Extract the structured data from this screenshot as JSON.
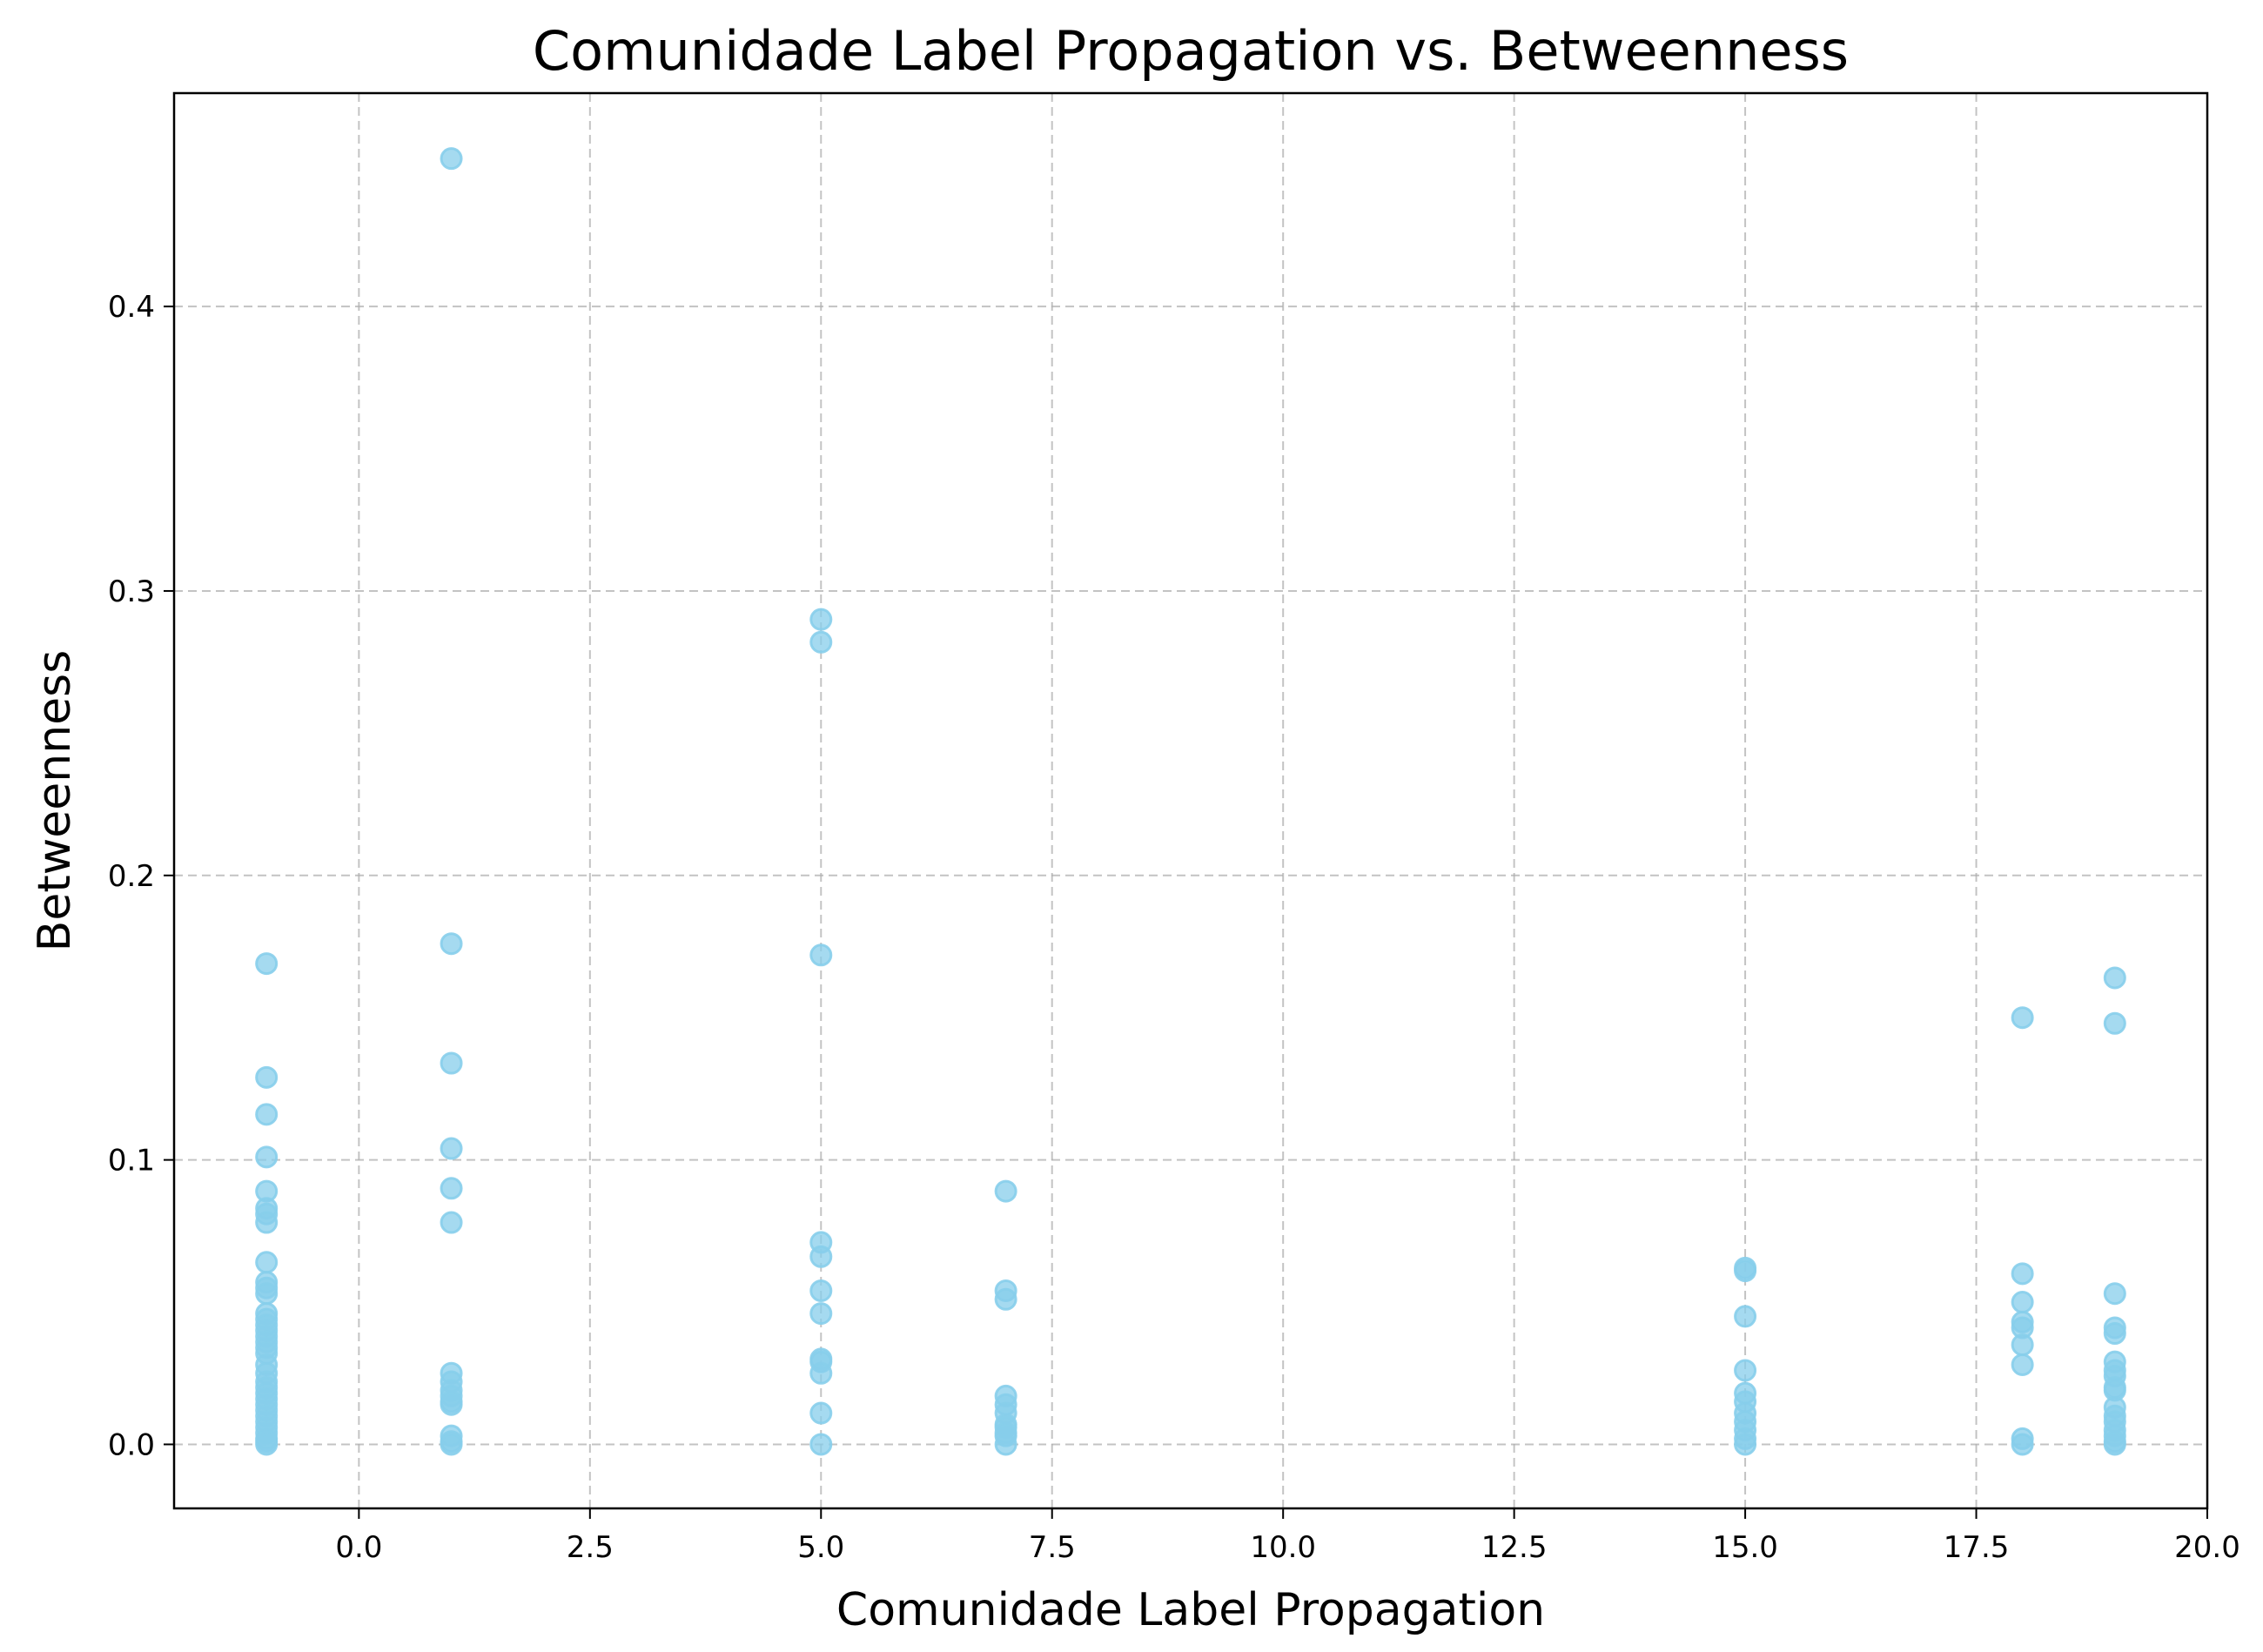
{
  "chart_data": {
    "type": "scatter",
    "title": "Comunidade Label Propagation vs. Betweenness",
    "xlabel": "Comunidade Label Propagation",
    "ylabel": "Betweenness",
    "xlim": [
      -2,
      20
    ],
    "ylim": [
      -0.0225,
      0.475
    ],
    "xticks": [
      0.0,
      2.5,
      5.0,
      7.5,
      10.0,
      12.5,
      15.0,
      17.5,
      20.0
    ],
    "xtick_labels": [
      "0.0",
      "2.5",
      "5.0",
      "7.5",
      "10.0",
      "12.5",
      "15.0",
      "17.5",
      "20.0"
    ],
    "yticks": [
      0.0,
      0.1,
      0.2,
      0.3,
      0.4
    ],
    "ytick_labels": [
      "0.0",
      "0.1",
      "0.2",
      "0.3",
      "0.4"
    ],
    "grid": true,
    "color": "#87CEEB",
    "points": [
      {
        "x": -1,
        "y": [
          0.169,
          0.129,
          0.116,
          0.101,
          0.089,
          0.083,
          0.081,
          0.078,
          0.064,
          0.057,
          0.055,
          0.053,
          0.046,
          0.044,
          0.042,
          0.04,
          0.038,
          0.036,
          0.034,
          0.032,
          0.028,
          0.025,
          0.022,
          0.02,
          0.018,
          0.016,
          0.014,
          0.012,
          0.01,
          0.008,
          0.006,
          0.004,
          0.002,
          0.001,
          0.0
        ]
      },
      {
        "x": 1,
        "y": [
          0.452,
          0.176,
          0.134,
          0.104,
          0.09,
          0.078,
          0.025,
          0.022,
          0.019,
          0.017,
          0.015,
          0.014,
          0.003,
          0.001,
          0.0
        ]
      },
      {
        "x": 5,
        "y": [
          0.29,
          0.282,
          0.172,
          0.071,
          0.066,
          0.054,
          0.046,
          0.03,
          0.029,
          0.025,
          0.011,
          0.0
        ]
      },
      {
        "x": 7,
        "y": [
          0.089,
          0.054,
          0.051,
          0.017,
          0.014,
          0.011,
          0.007,
          0.006,
          0.004,
          0.003,
          0.0
        ]
      },
      {
        "x": 15,
        "y": [
          0.062,
          0.061,
          0.045,
          0.026,
          0.018,
          0.015,
          0.011,
          0.008,
          0.005,
          0.002,
          0.0
        ]
      },
      {
        "x": 18,
        "y": [
          0.15,
          0.06,
          0.05,
          0.043,
          0.041,
          0.035,
          0.028,
          0.002,
          0.0
        ]
      },
      {
        "x": 19,
        "y": [
          0.164,
          0.148,
          0.053,
          0.041,
          0.039,
          0.029,
          0.026,
          0.024,
          0.02,
          0.019,
          0.013,
          0.01,
          0.008,
          0.005,
          0.003,
          0.001,
          0.0
        ]
      }
    ]
  }
}
